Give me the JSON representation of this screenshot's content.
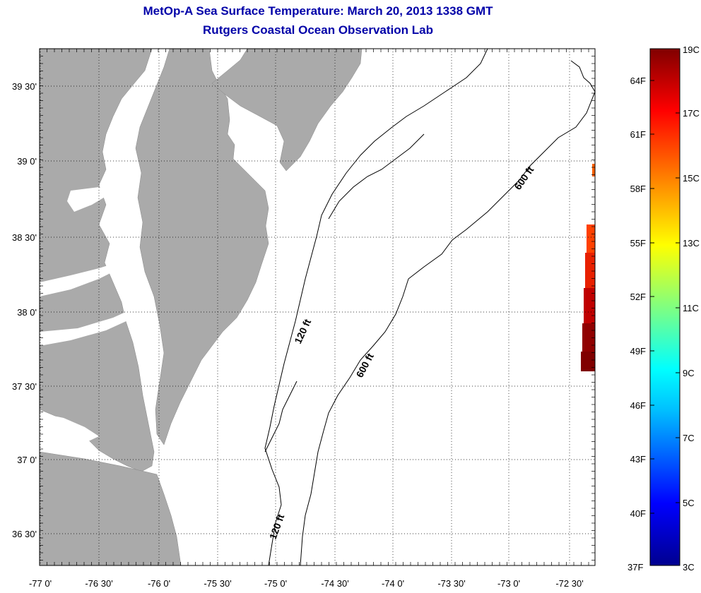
{
  "title": "MetOp-A Sea Surface Temperature:  March 20, 2013 1338 GMT",
  "subtitle": "Rutgers Coastal Ocean Observation Lab",
  "map": {
    "lon_range": [
      -77.0,
      -72.25
    ],
    "lat_range": [
      36.25,
      39.75
    ],
    "x_ticks": [
      "-77 0'",
      "-76 30'",
      "-76 0'",
      "-75 30'",
      "-75 0'",
      "-74 30'",
      "-74 0'",
      "-73 30'",
      "-73 0'",
      "-72 30'"
    ],
    "y_ticks": [
      "39 30'",
      "39 0'",
      "38 30'",
      "38 0'",
      "37 30'",
      "37 0'",
      "36 30'"
    ],
    "land_color": "#aaaaaa",
    "contour_labels": [
      "120 ft",
      "120 ft",
      "600 ft",
      "600 ft"
    ]
  },
  "colorbar": {
    "top_label": "19C",
    "bottom_label": "37F",
    "bottom_celsius": "3C",
    "fahrenheit_labels": [
      "64F",
      "61F",
      "58F",
      "55F",
      "52F",
      "49F",
      "46F",
      "43F",
      "40F"
    ],
    "celsius_labels": [
      "17C",
      "15C",
      "13C",
      "11C",
      "9C",
      "7C",
      "5C"
    ],
    "colors": [
      "#00008f",
      "#0000ff",
      "#00bfff",
      "#00ffff",
      "#80ff80",
      "#ffff00",
      "#ff8000",
      "#ff0000",
      "#800000"
    ]
  }
}
